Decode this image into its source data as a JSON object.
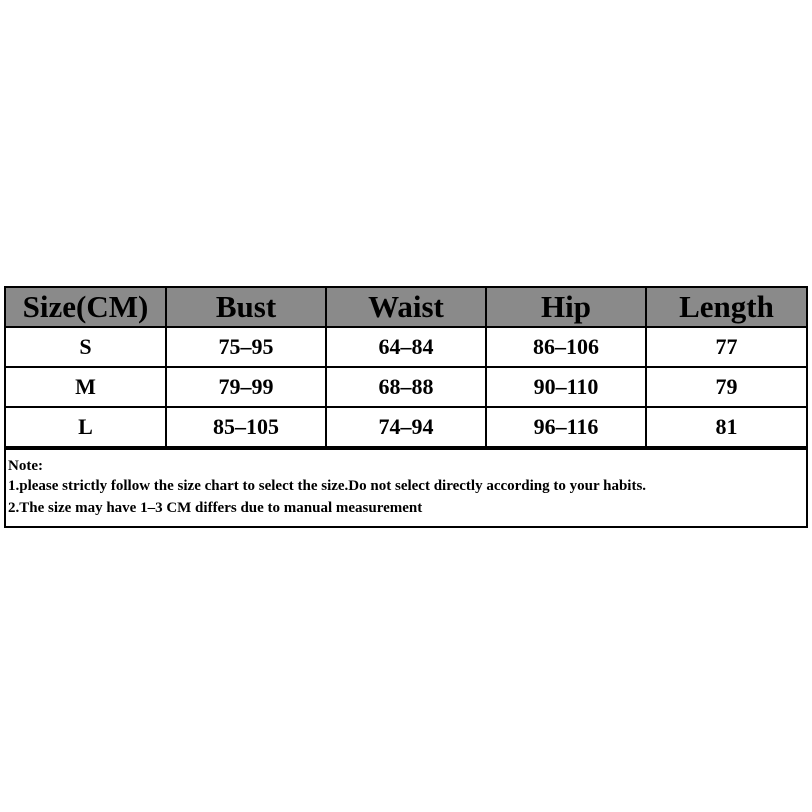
{
  "table": {
    "header": [
      "Size(CM)",
      "Bust",
      "Waist",
      "Hip",
      "Length"
    ],
    "rows": [
      [
        "S",
        "75–95",
        "64–84",
        "86–106",
        "77"
      ],
      [
        "M",
        "79–99",
        "68–88",
        "90–110",
        "79"
      ],
      [
        "L",
        "85–105",
        "74–94",
        "96–116",
        "81"
      ]
    ]
  },
  "note": {
    "title": "Note:",
    "lines": [
      "1.please strictly follow the size chart to select the size.Do not select directly according to your habits.",
      "2.The size may have 1–3 CM differs due to manual measurement"
    ]
  }
}
